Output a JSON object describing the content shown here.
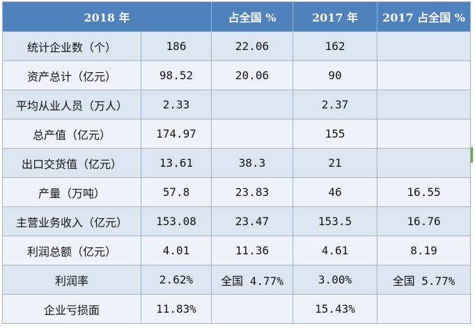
{
  "headers": [
    "2018 年",
    "占全国 %",
    "2017 年",
    "2017 占全国 %"
  ],
  "rows": [
    {
      "label": "统计企业数（个）",
      "y2018": "186",
      "share2018": "22.06",
      "y2017": "162",
      "share2017": ""
    },
    {
      "label": "资产总计（亿元）",
      "y2018": "98.52",
      "share2018": "20.06",
      "y2017": "90",
      "share2017": ""
    },
    {
      "label": "平均从业人员（万人）",
      "y2018": "2.33",
      "share2018": "",
      "y2017": "2.37",
      "share2017": ""
    },
    {
      "label": "总产值（亿元）",
      "y2018": "174.97",
      "share2018": "",
      "y2017": "155",
      "share2017": ""
    },
    {
      "label": "出口交货值（亿元）",
      "y2018": "13.61",
      "share2018": "38.3",
      "y2017": "21",
      "share2017": ""
    },
    {
      "label": "产量（万吨）",
      "y2018": "57.8",
      "share2018": "23.83",
      "y2017": "46",
      "share2017": "16.55"
    },
    {
      "label": "主营业务收入（亿元）",
      "y2018": "153.08",
      "share2018": "23.47",
      "y2017": "153.5",
      "share2017": "16.76"
    },
    {
      "label": "利润总额（亿元）",
      "y2018": "4.01",
      "share2018": "11.36",
      "y2017": "4.61",
      "share2017": "8.19"
    },
    {
      "label": "利润率",
      "y2018": "2.62%",
      "share2018": "全国 4.77%",
      "y2017": "3.00%",
      "share2017": "全国 5.77%"
    },
    {
      "label": "企业亏损面",
      "y2018": "11.83%",
      "share2018": "",
      "y2017": "15.43%",
      "share2017": ""
    }
  ],
  "colors": {
    "header_bg": "#4f81bd",
    "row_dark": "#dce6f1",
    "row_light": "#eef3f9",
    "border": "#9db3cf"
  }
}
